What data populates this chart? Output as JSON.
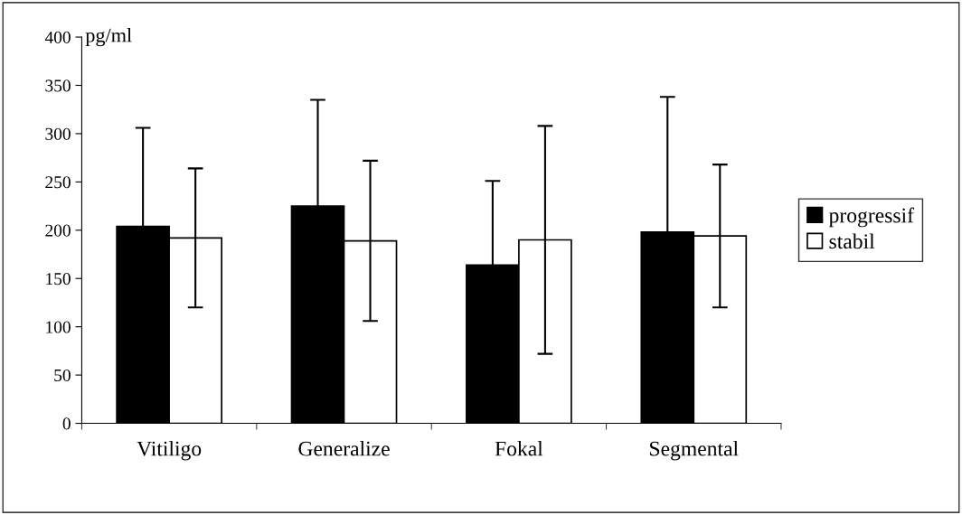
{
  "chart_data": {
    "type": "bar",
    "ylabel": "pg/ml",
    "categories": [
      "Vitiligo",
      "Generalize",
      "Fokal",
      "Segmental"
    ],
    "series": [
      {
        "name": "progressif",
        "color": "#000000",
        "values": [
          204,
          225,
          164,
          198
        ],
        "errors": [
          102,
          110,
          87,
          140
        ]
      },
      {
        "name": "stabil",
        "color": "#ffffff",
        "values": [
          192,
          189,
          190,
          194
        ],
        "errors": [
          72,
          83,
          118,
          74
        ]
      }
    ],
    "ylim": [
      0,
      400
    ],
    "yticks": [
      0,
      50,
      100,
      150,
      200,
      250,
      300,
      350,
      400
    ],
    "grid": false,
    "legend": "right"
  }
}
